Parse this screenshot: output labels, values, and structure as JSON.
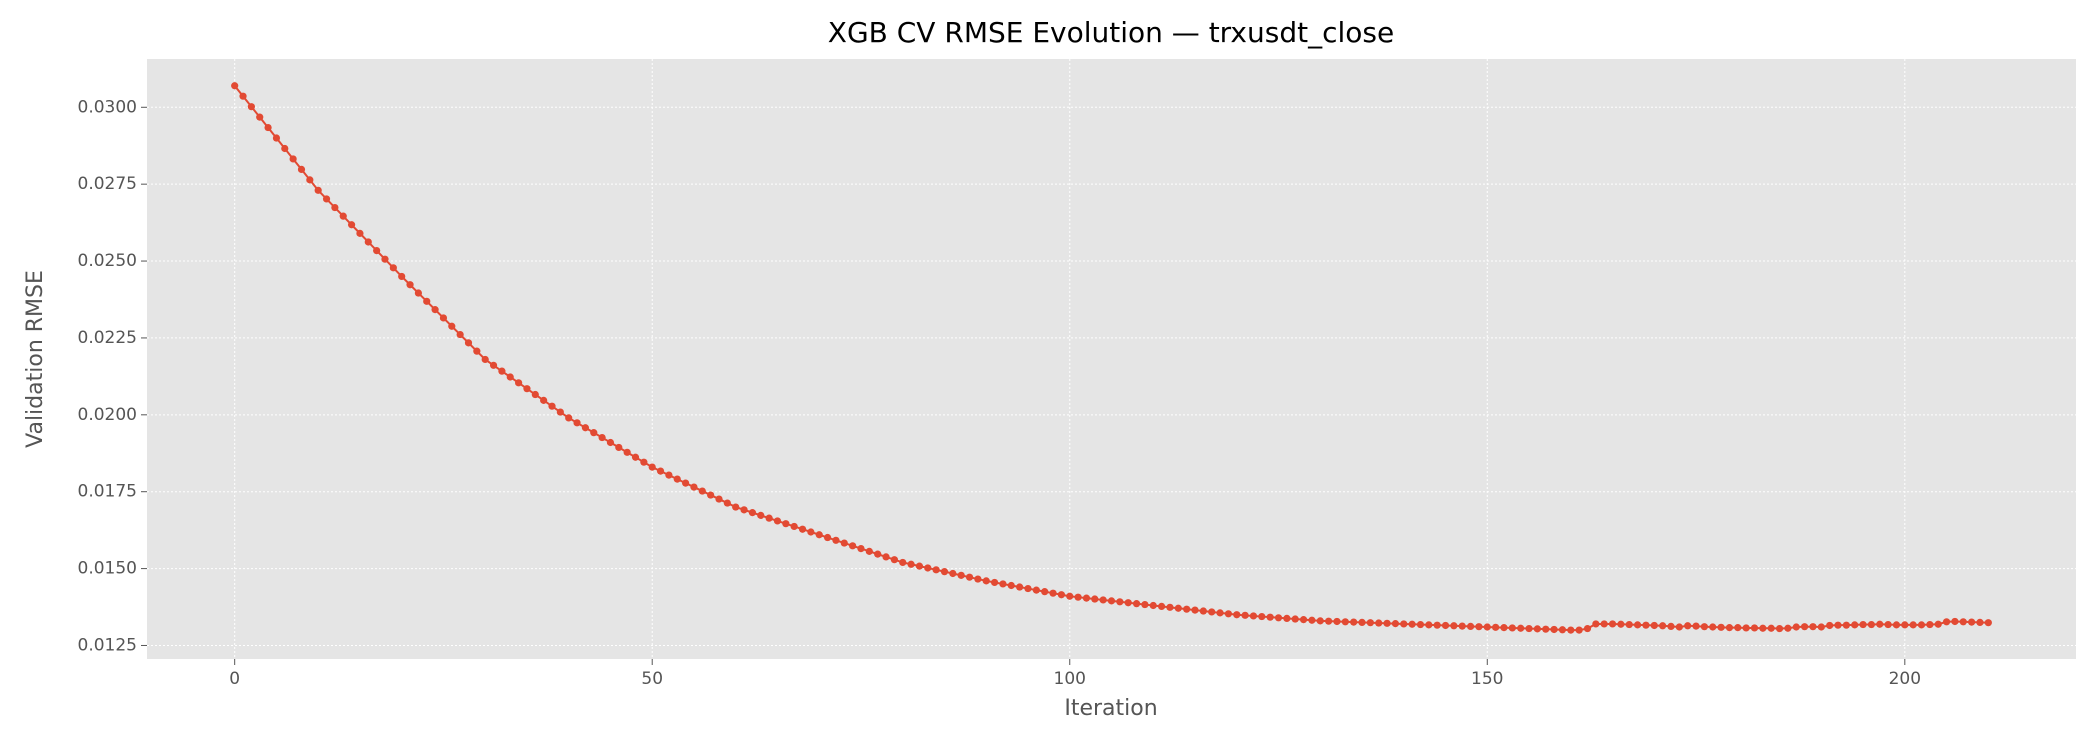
{
  "chart_data": {
    "type": "line",
    "title": "XGB CV RMSE Evolution — trxusdt_close",
    "x_label": "Iteration",
    "y_label": "Validation RMSE",
    "grid": true,
    "markers": true,
    "xlim": [
      -10.5,
      220.5
    ],
    "xticks": [
      0,
      50,
      100,
      150,
      200
    ],
    "ylim": [
      0.01206,
      0.03157
    ],
    "yticks": [
      0.0125,
      {
        "value": 0.015,
        "label": "0.0150"
      },
      0.0175,
      {
        "value": 0.02,
        "label": "0.0200"
      },
      0.0225,
      {
        "value": 0.025,
        "label": "0.0250"
      },
      0.0275,
      {
        "value": 0.03,
        "label": "0.0300"
      }
    ],
    "x": [
      0,
      1,
      2,
      3,
      4,
      5,
      6,
      7,
      8,
      9,
      10,
      11,
      12,
      13,
      14,
      15,
      16,
      17,
      18,
      19,
      20,
      21,
      22,
      23,
      24,
      25,
      26,
      27,
      28,
      29,
      30,
      31,
      32,
      33,
      34,
      35,
      36,
      37,
      38,
      39,
      40,
      41,
      42,
      43,
      44,
      45,
      46,
      47,
      48,
      49,
      50,
      51,
      52,
      53,
      54,
      55,
      56,
      57,
      58,
      59,
      60,
      61,
      62,
      63,
      64,
      65,
      66,
      67,
      68,
      69,
      70,
      71,
      72,
      73,
      74,
      75,
      76,
      77,
      78,
      79,
      80,
      81,
      82,
      83,
      84,
      85,
      86,
      87,
      88,
      89,
      90,
      91,
      92,
      93,
      94,
      95,
      96,
      97,
      98,
      99,
      100,
      101,
      102,
      103,
      104,
      105,
      106,
      107,
      108,
      109,
      110,
      111,
      112,
      113,
      114,
      115,
      116,
      117,
      118,
      119,
      120,
      121,
      122,
      123,
      124,
      125,
      126,
      127,
      128,
      129,
      130,
      131,
      132,
      133,
      134,
      135,
      136,
      137,
      138,
      139,
      140,
      141,
      142,
      143,
      144,
      145,
      146,
      147,
      148,
      149,
      150,
      151,
      152,
      153,
      154,
      155,
      156,
      157,
      158,
      159,
      160,
      161,
      162,
      163,
      164,
      165,
      166,
      167,
      168,
      169,
      170,
      171,
      172,
      173,
      174,
      175,
      176,
      177,
      178,
      179,
      180,
      181,
      182,
      183,
      184,
      185,
      186,
      187,
      188,
      189,
      190,
      191,
      192,
      193,
      194,
      195,
      196,
      197,
      198,
      199,
      200,
      201,
      202,
      203,
      204,
      205,
      206,
      207,
      208,
      209,
      210
    ],
    "series": [
      {
        "color": "#e24a33",
        "values": [
          0.0307,
          0.03036,
          0.03002,
          0.02968,
          0.02934,
          0.029,
          0.02866,
          0.02832,
          0.02798,
          0.02764,
          0.0273,
          0.02702,
          0.02674,
          0.02646,
          0.02618,
          0.0259,
          0.02562,
          0.02534,
          0.02506,
          0.02478,
          0.0245,
          0.02423,
          0.02396,
          0.02369,
          0.02342,
          0.02315,
          0.02288,
          0.02261,
          0.02234,
          0.02207,
          0.0218,
          0.02161,
          0.02142,
          0.02123,
          0.02104,
          0.02085,
          0.02066,
          0.02047,
          0.02028,
          0.02009,
          0.0199,
          0.01974,
          0.01958,
          0.01942,
          0.01926,
          0.0191,
          0.01894,
          0.01878,
          0.01862,
          0.01846,
          0.0183,
          0.01817,
          0.01804,
          0.01791,
          0.01778,
          0.01765,
          0.01752,
          0.01739,
          0.01726,
          0.01713,
          0.017,
          0.01691,
          0.01682,
          0.01673,
          0.01664,
          0.01655,
          0.01646,
          0.01637,
          0.01628,
          0.01619,
          0.0161,
          0.01601,
          0.01592,
          0.01583,
          0.01574,
          0.01565,
          0.01556,
          0.01547,
          0.01538,
          0.01529,
          0.0152,
          0.01514,
          0.01508,
          0.01502,
          0.01496,
          0.0149,
          0.01484,
          0.01478,
          0.01472,
          0.01466,
          0.0146,
          0.01455,
          0.0145,
          0.01445,
          0.0144,
          0.01435,
          0.0143,
          0.01425,
          0.0142,
          0.01415,
          0.0141,
          0.01407,
          0.01404,
          0.01401,
          0.01398,
          0.01395,
          0.01392,
          0.01389,
          0.01386,
          0.01383,
          0.0138,
          0.01377,
          0.01374,
          0.01371,
          0.01368,
          0.01365,
          0.01362,
          0.01359,
          0.01356,
          0.01353,
          0.0135,
          0.01348,
          0.01346,
          0.01344,
          0.01342,
          0.0134,
          0.01338,
          0.01336,
          0.01334,
          0.01332,
          0.0133,
          0.01329,
          0.01328,
          0.01327,
          0.01326,
          0.01325,
          0.01324,
          0.01323,
          0.01322,
          0.01321,
          0.0132,
          0.01319,
          0.01318,
          0.01317,
          0.01316,
          0.01315,
          0.01314,
          0.01313,
          0.01312,
          0.01311,
          0.0131,
          0.01309,
          0.01308,
          0.01307,
          0.01306,
          0.01305,
          0.01304,
          0.01303,
          0.01302,
          0.01301,
          0.013,
          0.013,
          0.01305,
          0.0132,
          0.0132,
          0.0132,
          0.01319,
          0.01318,
          0.01317,
          0.01316,
          0.01315,
          0.01314,
          0.01312,
          0.0131,
          0.01314,
          0.01313,
          0.01311,
          0.0131,
          0.01309,
          0.01308,
          0.01308,
          0.01307,
          0.01307,
          0.01306,
          0.01306,
          0.01305,
          0.01306,
          0.0131,
          0.01311,
          0.01311,
          0.0131,
          0.01315,
          0.01316,
          0.01316,
          0.01317,
          0.01318,
          0.01318,
          0.01319,
          0.01318,
          0.01317,
          0.01317,
          0.01317,
          0.01317,
          0.01318,
          0.01319,
          0.01327,
          0.01328,
          0.01327,
          0.01326,
          0.01325,
          0.01324
        ]
      }
    ]
  }
}
